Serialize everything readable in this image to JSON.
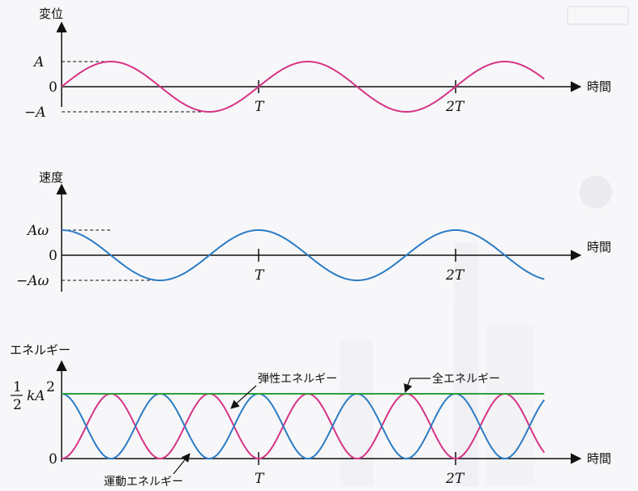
{
  "chart_data": [
    {
      "type": "line",
      "ylabel": "変位",
      "xlabel": "時間",
      "xticks": [
        "T",
        "2T"
      ],
      "yticks": [
        {
          "value": 1,
          "label": "A"
        },
        {
          "value": 0,
          "label": "0"
        },
        {
          "value": -1,
          "label": "−A"
        }
      ],
      "x_range_periods": [
        0,
        2.45
      ],
      "y_range": [
        -1,
        1
      ],
      "series": [
        {
          "name": "",
          "function": "sin",
          "amplitude": 1,
          "color": "#d63384"
        }
      ]
    },
    {
      "type": "line",
      "ylabel": "速度",
      "xlabel": "時間",
      "xticks": [
        "T",
        "2T"
      ],
      "yticks": [
        {
          "value": 1,
          "label": "Aω"
        },
        {
          "value": 0,
          "label": "0"
        },
        {
          "value": -1,
          "label": "−Aω"
        }
      ],
      "x_range_periods": [
        0,
        2.45
      ],
      "y_range": [
        -1,
        1
      ],
      "series": [
        {
          "name": "",
          "function": "cos",
          "amplitude": 1,
          "color": "#2b7bc4"
        }
      ]
    },
    {
      "type": "line",
      "ylabel": "エネルギー",
      "xlabel": "時間",
      "xticks": [
        "T",
        "2T"
      ],
      "yticks": [
        {
          "value": 1,
          "label": "kA²/2"
        },
        {
          "value": 0,
          "label": "0"
        }
      ],
      "ytick_top": {
        "frac_num": "1",
        "frac_den": "2",
        "expr": "kA",
        "sup": "2"
      },
      "x_range_periods": [
        0,
        2.45
      ],
      "y_range": [
        0,
        1
      ],
      "series": [
        {
          "name": "弾性エネルギー",
          "function": "sin2",
          "amplitude": 1,
          "color": "#d63384"
        },
        {
          "name": "運動エネルギー",
          "function": "cos2",
          "amplitude": 1,
          "color": "#2b7bc4"
        },
        {
          "name": "全エネルギー",
          "function": "const",
          "amplitude": 1,
          "color": "#2e9e3e"
        }
      ],
      "annotations": [
        "弾性エネルギー",
        "全エネルギー",
        "運動エネルギー"
      ]
    }
  ],
  "colors": {
    "axis": "#111111",
    "displacement": "#d63384",
    "velocity": "#2b7bc4",
    "total": "#2e9e3e"
  }
}
